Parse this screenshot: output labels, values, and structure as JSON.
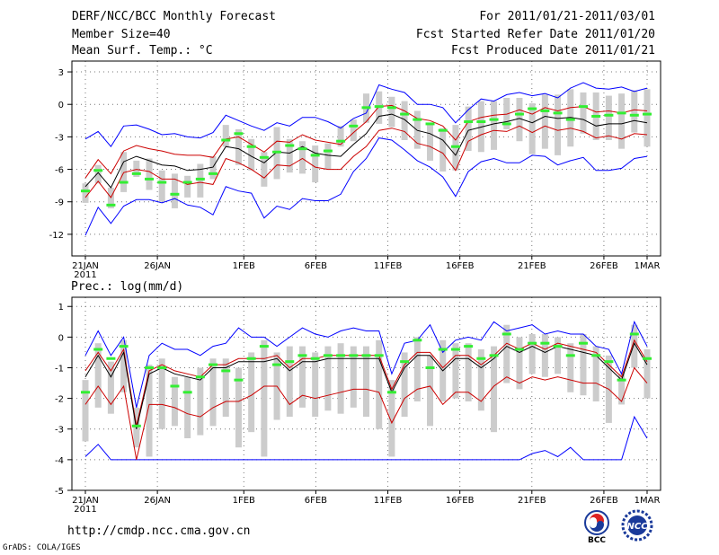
{
  "header": {
    "title": "DERF/NCC/BCC Monthly Forecast",
    "member_size": "Member Size=40",
    "variable": "Mean Surf. Temp.: °C",
    "period": "For 2011/01/21-2011/03/01",
    "started": "Fcst Started Refer Date 2011/01/20",
    "produced": "Fcst Produced Date 2011/01/21"
  },
  "footer": {
    "url": "http://cmdp.ncc.cma.gov.cn",
    "grads": "GrADS: COLA/IGES",
    "logo_bcc": "BCC",
    "logo_ncc": "NCC"
  },
  "colors": {
    "envelope": "#0000ff",
    "spread": "#cc0000",
    "mean": "#000000",
    "median": "#33ee33",
    "box": "#cccccc"
  },
  "chart_data": [
    {
      "type": "line",
      "title": "Mean Surf. Temp.: °C",
      "x_ticks": [
        "21JAN",
        "26JAN",
        "1FEB",
        "6FEB",
        "11FEB",
        "16FEB",
        "21FEB",
        "26FEB",
        "1MAR"
      ],
      "x_tick_days": [
        0,
        5,
        11,
        16,
        21,
        26,
        31,
        36,
        39
      ],
      "x_sublabel": "2011",
      "yticks": [
        3,
        0,
        -3,
        -6,
        -9,
        -12
      ],
      "ylim": [
        -14,
        4
      ],
      "series": [
        {
          "name": "max",
          "values": [
            -3.2,
            -2.5,
            -3.9,
            -2.0,
            -1.9,
            -2.3,
            -2.8,
            -2.7,
            -3.0,
            -3.1,
            -2.6,
            -1.0,
            -1.5,
            -2.0,
            -2.4,
            -1.7,
            -2.0,
            -1.2,
            -1.2,
            -1.6,
            -2.2,
            -1.3,
            -0.8,
            1.8,
            1.4,
            1.1,
            0.0,
            0.0,
            -0.3,
            -1.7,
            -0.5,
            0.5,
            0.3,
            0.9,
            1.1,
            0.8,
            1.0,
            0.6,
            1.5,
            2.0,
            1.5,
            1.4,
            1.6,
            1.2,
            1.5
          ]
        },
        {
          "name": "upper",
          "values": [
            -6.8,
            -5.1,
            -6.4,
            -4.3,
            -3.8,
            -4.1,
            -4.3,
            -4.6,
            -4.7,
            -4.7,
            -4.9,
            -3.2,
            -3.0,
            -3.7,
            -4.4,
            -3.4,
            -3.5,
            -2.8,
            -3.3,
            -3.5,
            -3.7,
            -2.6,
            -1.6,
            -0.2,
            -0.1,
            -0.6,
            -1.3,
            -1.5,
            -2.0,
            -3.3,
            -1.6,
            -1.2,
            -1.0,
            -0.9,
            -0.5,
            -0.9,
            -0.3,
            -0.6,
            -0.3,
            -0.2,
            -0.7,
            -0.6,
            -0.8,
            -0.5,
            -0.6
          ]
        },
        {
          "name": "mean",
          "values": [
            -7.6,
            -6.3,
            -7.7,
            -5.3,
            -4.8,
            -5.2,
            -5.6,
            -5.7,
            -6.1,
            -6.0,
            -5.8,
            -3.9,
            -4.1,
            -4.8,
            -5.4,
            -4.4,
            -4.5,
            -3.9,
            -4.5,
            -4.7,
            -4.8,
            -3.7,
            -2.7,
            -1.1,
            -0.9,
            -1.4,
            -2.4,
            -2.7,
            -3.3,
            -4.7,
            -2.4,
            -2.1,
            -1.8,
            -1.6,
            -1.3,
            -1.7,
            -1.1,
            -1.3,
            -1.2,
            -1.4,
            -2.0,
            -1.8,
            -1.8,
            -1.5,
            -1.7
          ]
        },
        {
          "name": "lower",
          "values": [
            -8.6,
            -7.1,
            -8.6,
            -6.3,
            -6.0,
            -6.2,
            -6.9,
            -6.9,
            -7.4,
            -7.2,
            -7.4,
            -5.0,
            -5.4,
            -6.0,
            -6.8,
            -5.6,
            -5.7,
            -5.0,
            -5.8,
            -6.0,
            -6.0,
            -4.8,
            -3.9,
            -2.4,
            -2.2,
            -2.5,
            -3.6,
            -3.9,
            -4.5,
            -6.1,
            -3.4,
            -2.8,
            -2.4,
            -2.5,
            -2.0,
            -2.6,
            -2.0,
            -2.4,
            -2.2,
            -2.5,
            -3.1,
            -2.9,
            -3.2,
            -2.7,
            -2.8
          ]
        },
        {
          "name": "min",
          "values": [
            -12.1,
            -9.5,
            -11.0,
            -9.4,
            -8.8,
            -8.8,
            -9.1,
            -8.7,
            -9.3,
            -9.5,
            -10.2,
            -7.6,
            -8.0,
            -8.2,
            -10.5,
            -9.4,
            -9.7,
            -8.7,
            -8.9,
            -8.9,
            -8.3,
            -6.2,
            -5.0,
            -3.1,
            -3.3,
            -4.2,
            -5.2,
            -5.8,
            -6.7,
            -8.5,
            -6.2,
            -5.3,
            -5.0,
            -5.4,
            -5.4,
            -4.7,
            -4.8,
            -5.6,
            -5.2,
            -4.9,
            -6.1,
            -6.1,
            -5.9,
            -5.0,
            -4.8
          ]
        },
        {
          "name": "median",
          "values": [
            -8.0,
            -6.1,
            -9.3,
            -7.2,
            -6.4,
            -6.9,
            -7.2,
            -8.3,
            -7.2,
            -6.9,
            -6.4,
            -3.3,
            -2.7,
            -3.9,
            -4.9,
            -4.4,
            -3.8,
            -4.1,
            -4.7,
            -4.3,
            -3.4,
            -2.0,
            -0.3,
            -0.2,
            -0.3,
            -0.9,
            -1.4,
            -1.8,
            -2.4,
            -3.9,
            -1.6,
            -1.6,
            -1.4,
            -1.8,
            -0.9,
            -0.4,
            -0.6,
            -0.8,
            -1.4,
            -0.2,
            -1.1,
            -1.0,
            -0.8,
            -1.0,
            -0.9
          ]
        },
        {
          "name": "box_high",
          "values": [
            -7.3,
            -5.6,
            -7.7,
            -4.4,
            -5.2,
            -5.0,
            -6.1,
            -6.4,
            -6.6,
            -5.5,
            -4.8,
            -1.9,
            -2.3,
            -3.2,
            -4.4,
            -2.1,
            -3.2,
            -3.4,
            -3.8,
            -3.6,
            -2.0,
            -1.4,
            1.0,
            1.2,
            0.7,
            0.3,
            -0.6,
            -1.8,
            -2.2,
            -1.9,
            -0.2,
            0.3,
            0.3,
            0.6,
            0.6,
            0.1,
            0.9,
            0.9,
            1.4,
            1.1,
            1.1,
            0.8,
            1.0,
            1.3,
            1.4
          ]
        },
        {
          "name": "box_low",
          "values": [
            -9.1,
            -7.3,
            -9.6,
            -8.1,
            -6.7,
            -7.9,
            -9.0,
            -9.6,
            -8.6,
            -8.6,
            -6.9,
            -3.9,
            -5.6,
            -6.1,
            -7.6,
            -6.9,
            -6.3,
            -6.4,
            -7.2,
            -6.0,
            -3.9,
            -3.4,
            -1.7,
            -1.8,
            -2.1,
            -3.3,
            -4.1,
            -5.2,
            -6.2,
            -6.1,
            -4.3,
            -4.4,
            -4.2,
            -2.3,
            -3.4,
            -4.6,
            -4.1,
            -4.7,
            -3.9,
            -2.7,
            -3.3,
            -3.3,
            -4.1,
            -2.6,
            -3.9
          ]
        }
      ]
    },
    {
      "type": "line",
      "title": "Prec.: log(mm/d)",
      "x_ticks": [
        "21JAN",
        "26JAN",
        "1FEB",
        "6FEB",
        "11FEB",
        "16FEB",
        "21FEB",
        "26FEB",
        "1MAR"
      ],
      "x_tick_days": [
        0,
        5,
        11,
        16,
        21,
        26,
        31,
        36,
        39
      ],
      "x_sublabel": "2011",
      "yticks": [
        1,
        0,
        -1,
        -2,
        -3,
        -4,
        -5
      ],
      "ylim": [
        -5,
        1.3
      ],
      "series": [
        {
          "name": "max",
          "values": [
            -0.6,
            0.2,
            -0.6,
            0.0,
            -2.3,
            -0.6,
            -0.2,
            -0.4,
            -0.4,
            -0.6,
            -0.3,
            -0.2,
            0.3,
            0.0,
            0.0,
            -0.3,
            0.0,
            0.3,
            0.1,
            0.0,
            0.2,
            0.3,
            0.2,
            0.2,
            -1.2,
            -0.2,
            -0.1,
            0.4,
            -0.5,
            -0.1,
            0.0,
            -0.1,
            0.5,
            0.2,
            0.3,
            0.4,
            0.1,
            0.2,
            0.1,
            0.1,
            -0.3,
            -0.4,
            -1.2,
            0.5,
            -0.3
          ]
        },
        {
          "name": "upper",
          "values": [
            -1.1,
            -0.5,
            -1.1,
            -0.4,
            -2.9,
            -1.1,
            -0.9,
            -1.1,
            -1.2,
            -1.3,
            -0.9,
            -0.9,
            -0.7,
            -0.7,
            -0.7,
            -0.6,
            -1.0,
            -0.7,
            -0.7,
            -0.6,
            -0.6,
            -0.6,
            -0.6,
            -0.6,
            -1.7,
            -0.9,
            -0.5,
            -0.5,
            -1.0,
            -0.6,
            -0.6,
            -0.9,
            -0.6,
            -0.2,
            -0.4,
            -0.2,
            -0.4,
            -0.2,
            -0.3,
            -0.4,
            -0.5,
            -0.9,
            -1.3,
            -0.1,
            -0.8
          ]
        },
        {
          "name": "mean",
          "values": [
            -1.3,
            -0.6,
            -1.3,
            -0.5,
            -3.0,
            -1.2,
            -1.0,
            -1.2,
            -1.3,
            -1.4,
            -1.0,
            -1.0,
            -0.8,
            -0.8,
            -0.8,
            -0.7,
            -1.1,
            -0.8,
            -0.8,
            -0.7,
            -0.7,
            -0.7,
            -0.7,
            -0.7,
            -1.8,
            -1.0,
            -0.6,
            -0.6,
            -1.1,
            -0.7,
            -0.7,
            -1.0,
            -0.7,
            -0.3,
            -0.5,
            -0.3,
            -0.5,
            -0.3,
            -0.4,
            -0.5,
            -0.6,
            -1.0,
            -1.4,
            -0.2,
            -0.9
          ]
        },
        {
          "name": "lower",
          "values": [
            -2.2,
            -1.6,
            -2.2,
            -1.6,
            -4.0,
            -2.2,
            -2.2,
            -2.3,
            -2.5,
            -2.6,
            -2.3,
            -2.1,
            -2.1,
            -1.9,
            -1.6,
            -1.6,
            -2.2,
            -1.9,
            -2.0,
            -1.9,
            -1.8,
            -1.7,
            -1.7,
            -1.8,
            -2.8,
            -2.0,
            -1.7,
            -1.6,
            -2.2,
            -1.8,
            -1.8,
            -2.1,
            -1.6,
            -1.3,
            -1.5,
            -1.3,
            -1.4,
            -1.3,
            -1.4,
            -1.5,
            -1.5,
            -1.7,
            -2.1,
            -1.0,
            -1.5
          ]
        },
        {
          "name": "min",
          "values": [
            -3.9,
            -3.5,
            -4.0,
            -4.0,
            -4.0,
            -4.0,
            -4.0,
            -4.0,
            -4.0,
            -4.0,
            -4.0,
            -4.0,
            -4.0,
            -4.0,
            -4.0,
            -4.0,
            -4.0,
            -4.0,
            -4.0,
            -4.0,
            -4.0,
            -4.0,
            -4.0,
            -4.0,
            -4.0,
            -4.0,
            -4.0,
            -4.0,
            -4.0,
            -4.0,
            -4.0,
            -4.0,
            -4.0,
            -4.0,
            -4.0,
            -3.8,
            -3.7,
            -3.9,
            -3.6,
            -4.0,
            -4.0,
            -4.0,
            -4.0,
            -2.6,
            -3.3
          ]
        },
        {
          "name": "median",
          "values": [
            -1.8,
            -0.4,
            -0.7,
            -0.3,
            -2.9,
            -1.0,
            -1.0,
            -1.6,
            -1.8,
            -1.3,
            -0.9,
            -1.1,
            -1.4,
            -0.7,
            -0.3,
            -0.9,
            -0.8,
            -0.6,
            -0.7,
            -0.6,
            -0.6,
            -0.6,
            -0.6,
            -0.6,
            -1.8,
            -0.8,
            -0.1,
            -1.0,
            -0.4,
            -0.4,
            -0.3,
            -0.7,
            -0.6,
            0.1,
            -0.4,
            -0.2,
            -0.2,
            -0.3,
            -0.6,
            -0.2,
            -0.6,
            -0.8,
            -1.4,
            0.1,
            -0.7
          ]
        },
        {
          "name": "box_high",
          "values": [
            -1.4,
            -0.2,
            -0.8,
            -0.1,
            -2.3,
            -0.9,
            -0.7,
            -1.3,
            -1.3,
            -1.0,
            -0.7,
            -0.7,
            -1.0,
            -0.5,
            -0.1,
            -0.5,
            -0.3,
            -0.3,
            -0.5,
            -0.3,
            -0.2,
            -0.3,
            -0.3,
            -0.1,
            -1.4,
            -0.5,
            0.0,
            -0.6,
            -0.1,
            -0.2,
            -0.2,
            -0.4,
            -0.3,
            0.4,
            0.0,
            0.1,
            0.1,
            0.0,
            -0.2,
            0.1,
            -0.3,
            -0.6,
            -1.2,
            0.4,
            -0.4
          ]
        },
        {
          "name": "box_low",
          "values": [
            -3.4,
            -2.3,
            -2.5,
            -1.8,
            -3.6,
            -3.9,
            -3.0,
            -2.9,
            -3.3,
            -3.2,
            -2.9,
            -2.6,
            -3.6,
            -3.1,
            -3.9,
            -2.7,
            -2.6,
            -2.3,
            -2.6,
            -2.4,
            -2.5,
            -2.3,
            -2.6,
            -3.0,
            -3.9,
            -2.6,
            -2.1,
            -2.9,
            -2.1,
            -2.0,
            -2.1,
            -2.4,
            -3.1,
            -1.5,
            -1.7,
            -1.2,
            -1.3,
            -1.2,
            -1.8,
            -1.9,
            -2.1,
            -2.8,
            -2.2,
            -1.0,
            -2.0
          ]
        }
      ]
    }
  ]
}
